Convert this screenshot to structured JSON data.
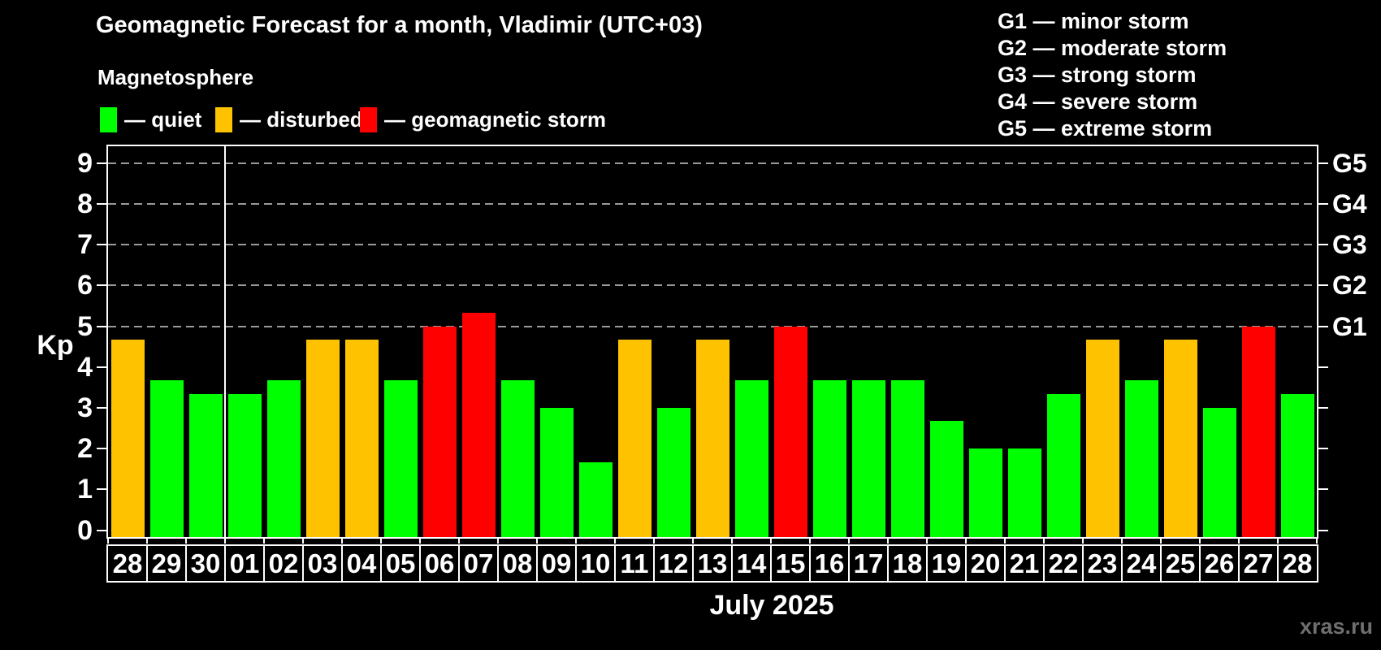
{
  "header": {
    "title": "Geomagnetic Forecast for a month, Vladimir (UTC+03)",
    "subtitle": "Magnetosphere"
  },
  "legend": {
    "items": [
      {
        "id": "quiet",
        "label": "— quiet",
        "color": "#00ff00"
      },
      {
        "id": "disturbed",
        "label": "— disturbed",
        "color": "#ffc200"
      },
      {
        "id": "storm",
        "label": "— geomagnetic storm",
        "color": "#ff0000"
      }
    ]
  },
  "g_legend": {
    "items": [
      "G1 — minor storm",
      "G2 — moderate storm",
      "G3 — strong storm",
      "G4 — severe storm",
      "G5 — extreme storm"
    ]
  },
  "axes": {
    "y_label": "Kp",
    "x_label": "July 2025",
    "y_ticks": [
      "0",
      "1",
      "2",
      "3",
      "4",
      "5",
      "6",
      "7",
      "8",
      "9"
    ],
    "right_labels": [
      {
        "label": "G1",
        "kp": 5
      },
      {
        "label": "G2",
        "kp": 6
      },
      {
        "label": "G3",
        "kp": 7
      },
      {
        "label": "G4",
        "kp": 8
      },
      {
        "label": "G5",
        "kp": 9
      }
    ]
  },
  "watermark": "xras.ru",
  "chart_data": {
    "type": "bar",
    "title": "Geomagnetic Forecast for a month, Vladimir (UTC+03)",
    "xlabel": "July 2025",
    "ylabel": "Kp",
    "ylim": [
      0,
      9
    ],
    "grid_on": true,
    "grid_kp_levels": [
      5,
      6,
      7,
      8,
      9
    ],
    "legend_position": "top",
    "categories": [
      "28",
      "29",
      "30",
      "01",
      "02",
      "03",
      "04",
      "05",
      "06",
      "07",
      "08",
      "09",
      "10",
      "11",
      "12",
      "13",
      "14",
      "15",
      "16",
      "17",
      "18",
      "19",
      "20",
      "21",
      "22",
      "23",
      "24",
      "25",
      "26",
      "27",
      "28"
    ],
    "values": [
      4.67,
      3.67,
      3.33,
      3.33,
      3.67,
      4.67,
      4.67,
      3.67,
      5.0,
      5.33,
      3.67,
      3.0,
      1.67,
      4.67,
      3.0,
      4.67,
      3.67,
      5.0,
      3.67,
      3.67,
      3.67,
      2.67,
      2.0,
      2.0,
      3.33,
      4.67,
      3.67,
      4.67,
      3.0,
      5.0,
      3.33
    ],
    "statuses": [
      "disturbed",
      "quiet",
      "quiet",
      "quiet",
      "quiet",
      "disturbed",
      "disturbed",
      "quiet",
      "storm",
      "storm",
      "quiet",
      "quiet",
      "quiet",
      "disturbed",
      "quiet",
      "disturbed",
      "quiet",
      "storm",
      "quiet",
      "quiet",
      "quiet",
      "quiet",
      "quiet",
      "quiet",
      "quiet",
      "disturbed",
      "quiet",
      "disturbed",
      "quiet",
      "storm",
      "quiet"
    ],
    "status_colors": {
      "quiet": "#00ff00",
      "disturbed": "#ffc200",
      "storm": "#ff0000"
    },
    "month_separator_after_index": 2
  }
}
